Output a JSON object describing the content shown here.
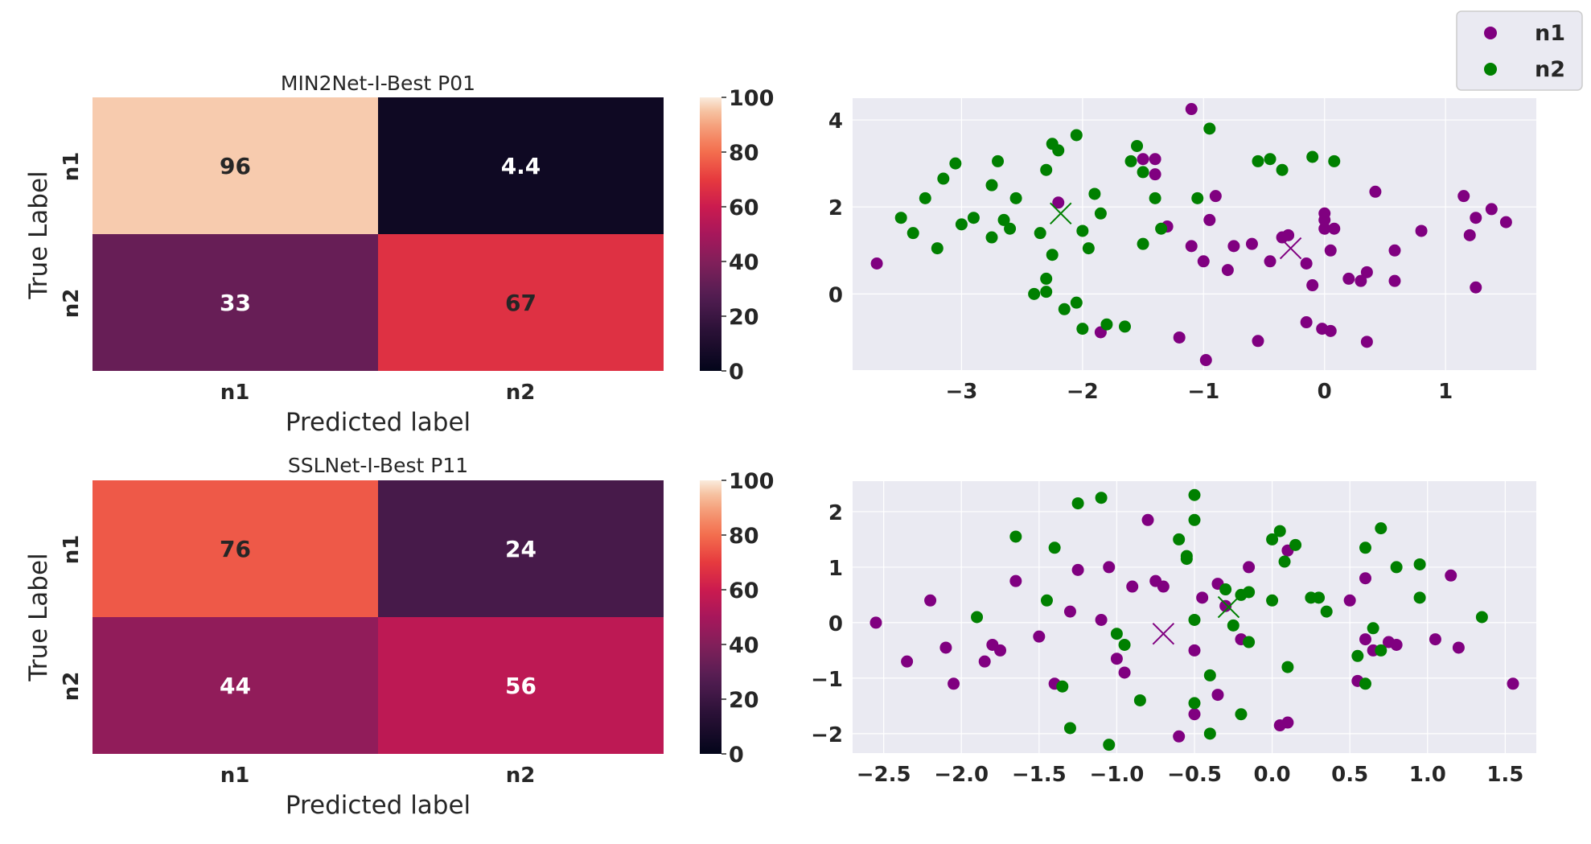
{
  "colors": {
    "n1": "#800080",
    "n2": "#008000",
    "axes_bg": "#eaeaf2",
    "grid": "#ffffff",
    "text": "#262626"
  },
  "legend": {
    "placement": "top-right",
    "entries": [
      {
        "label": "n1",
        "color": "#800080"
      },
      {
        "label": "n2",
        "color": "#008000"
      }
    ]
  },
  "chart_data": [
    {
      "id": "cm1",
      "type": "heatmap",
      "title": "MIN2Net-I-Best P01",
      "xlabel": "Predicted label",
      "ylabel": "True Label",
      "x_categories": [
        "n1",
        "n2"
      ],
      "y_categories": [
        "n1",
        "n2"
      ],
      "values": [
        [
          96,
          4.4
        ],
        [
          33,
          67
        ]
      ],
      "colorbar": {
        "min": 0,
        "max": 100,
        "ticks": [
          0,
          20,
          40,
          60,
          80,
          100
        ],
        "colormap": "rocket"
      }
    },
    {
      "id": "sc1",
      "type": "scatter",
      "xlim": [
        -3.9,
        1.75
      ],
      "ylim": [
        -1.75,
        4.5
      ],
      "xticks": [
        -3,
        -2,
        -1,
        0,
        1
      ],
      "xtick_labels": [
        "−3",
        "−2",
        "−1",
        "0",
        "1"
      ],
      "yticks": [
        0,
        2,
        4
      ],
      "ytick_labels": [
        "0",
        "2",
        "4"
      ],
      "grid": true,
      "series": [
        {
          "name": "n1",
          "color": "#800080",
          "points": [
            [
              -3.7,
              0.7
            ],
            [
              -1.1,
              4.25
            ],
            [
              -1.5,
              3.1
            ],
            [
              -1.4,
              3.1
            ],
            [
              -1.4,
              2.75
            ],
            [
              -0.95,
              1.7
            ],
            [
              -0.9,
              2.25
            ],
            [
              -0.75,
              1.1
            ],
            [
              -0.6,
              1.15
            ],
            [
              -0.35,
              1.3
            ],
            [
              -0.3,
              1.35
            ],
            [
              -0.15,
              0.7
            ],
            [
              -0.1,
              0.2
            ],
            [
              0.0,
              1.7
            ],
            [
              0.0,
              1.85
            ],
            [
              0.0,
              1.5
            ],
            [
              0.05,
              1.0
            ],
            [
              0.08,
              1.5
            ],
            [
              0.2,
              0.35
            ],
            [
              0.3,
              0.3
            ],
            [
              0.35,
              0.5
            ],
            [
              0.42,
              2.35
            ],
            [
              0.58,
              1.0
            ],
            [
              0.58,
              0.3
            ],
            [
              0.8,
              1.45
            ],
            [
              1.15,
              2.25
            ],
            [
              1.2,
              1.35
            ],
            [
              1.25,
              1.75
            ],
            [
              1.38,
              1.95
            ],
            [
              1.5,
              1.65
            ],
            [
              1.25,
              0.15
            ],
            [
              -1.3,
              1.55
            ],
            [
              -1.1,
              1.1
            ],
            [
              -1.0,
              0.75
            ],
            [
              -0.8,
              0.55
            ],
            [
              -0.45,
              0.75
            ],
            [
              -0.15,
              -0.65
            ],
            [
              -0.02,
              -0.8
            ],
            [
              0.05,
              -0.85
            ],
            [
              0.35,
              -1.1
            ],
            [
              -0.55,
              -1.08
            ],
            [
              -0.98,
              -1.52
            ],
            [
              -1.2,
              -1.0
            ],
            [
              -1.85,
              -0.88
            ],
            [
              -2.2,
              2.1
            ]
          ]
        },
        {
          "name": "n2",
          "color": "#008000",
          "points": [
            [
              -3.5,
              1.75
            ],
            [
              -3.4,
              1.4
            ],
            [
              -3.3,
              2.2
            ],
            [
              -3.2,
              1.05
            ],
            [
              -3.15,
              2.65
            ],
            [
              -3.05,
              3.0
            ],
            [
              -3.0,
              1.6
            ],
            [
              -2.9,
              1.75
            ],
            [
              -2.75,
              2.5
            ],
            [
              -2.75,
              1.3
            ],
            [
              -2.7,
              3.05
            ],
            [
              -2.65,
              1.7
            ],
            [
              -2.6,
              1.5
            ],
            [
              -2.55,
              2.2
            ],
            [
              -2.4,
              0.0
            ],
            [
              -2.35,
              1.4
            ],
            [
              -2.3,
              0.35
            ],
            [
              -2.3,
              0.05
            ],
            [
              -2.3,
              2.85
            ],
            [
              -2.25,
              0.9
            ],
            [
              -2.25,
              3.45
            ],
            [
              -2.2,
              3.3
            ],
            [
              -2.15,
              -0.35
            ],
            [
              -2.05,
              3.65
            ],
            [
              -2.05,
              -0.2
            ],
            [
              -2.0,
              1.45
            ],
            [
              -2.0,
              -0.8
            ],
            [
              -1.95,
              1.05
            ],
            [
              -1.9,
              2.3
            ],
            [
              -1.85,
              1.85
            ],
            [
              -1.8,
              -0.7
            ],
            [
              -1.65,
              -0.75
            ],
            [
              -1.6,
              3.05
            ],
            [
              -1.55,
              3.4
            ],
            [
              -1.5,
              2.8
            ],
            [
              -1.5,
              1.15
            ],
            [
              -1.4,
              2.2
            ],
            [
              -1.35,
              1.5
            ],
            [
              -1.05,
              2.2
            ],
            [
              -0.95,
              3.8
            ],
            [
              -0.55,
              3.05
            ],
            [
              -0.45,
              3.1
            ],
            [
              -0.35,
              2.85
            ],
            [
              -0.1,
              3.15
            ],
            [
              0.08,
              3.05
            ]
          ]
        }
      ],
      "centroids": [
        {
          "series": "n1",
          "x": -0.28,
          "y": 1.05,
          "marker": "x"
        },
        {
          "series": "n2",
          "x": -2.18,
          "y": 1.85,
          "marker": "x"
        }
      ]
    },
    {
      "id": "cm2",
      "type": "heatmap",
      "title": "SSLNet-I-Best P11",
      "xlabel": "Predicted label",
      "ylabel": "True Label",
      "x_categories": [
        "n1",
        "n2"
      ],
      "y_categories": [
        "n1",
        "n2"
      ],
      "values": [
        [
          76,
          24
        ],
        [
          44,
          56
        ]
      ],
      "colorbar": {
        "min": 0,
        "max": 100,
        "ticks": [
          0,
          20,
          40,
          60,
          80,
          100
        ],
        "colormap": "rocket"
      }
    },
    {
      "id": "sc2",
      "type": "scatter",
      "xlim": [
        -2.7,
        1.7
      ],
      "ylim": [
        -2.35,
        2.55
      ],
      "xticks": [
        -2.5,
        -2.0,
        -1.5,
        -1.0,
        -0.5,
        0.0,
        0.5,
        1.0,
        1.5
      ],
      "xtick_labels": [
        "−2.5",
        "−2.0",
        "−1.5",
        "−1.0",
        "−0.5",
        "0.0",
        "0.5",
        "1.0",
        "1.5"
      ],
      "yticks": [
        -2,
        -1,
        0,
        1,
        2
      ],
      "ytick_labels": [
        "−2",
        "−1",
        "0",
        "1",
        "2"
      ],
      "grid": true,
      "series": [
        {
          "name": "n1",
          "color": "#800080",
          "points": [
            [
              -2.55,
              0.0
            ],
            [
              -2.35,
              -0.7
            ],
            [
              -2.2,
              0.4
            ],
            [
              -2.1,
              -0.45
            ],
            [
              -2.05,
              -1.1
            ],
            [
              -1.85,
              -0.7
            ],
            [
              -1.8,
              -0.4
            ],
            [
              -1.75,
              -0.5
            ],
            [
              -1.65,
              0.75
            ],
            [
              -1.5,
              -0.25
            ],
            [
              -1.4,
              -1.1
            ],
            [
              -1.3,
              0.2
            ],
            [
              -1.25,
              0.95
            ],
            [
              -1.1,
              0.05
            ],
            [
              -1.05,
              1.0
            ],
            [
              -1.0,
              -0.65
            ],
            [
              -0.95,
              -0.9
            ],
            [
              -0.9,
              0.65
            ],
            [
              -0.8,
              1.85
            ],
            [
              -0.75,
              0.75
            ],
            [
              -0.7,
              0.65
            ],
            [
              -0.6,
              -2.05
            ],
            [
              -0.5,
              -1.65
            ],
            [
              -0.45,
              0.45
            ],
            [
              -0.35,
              -1.3
            ],
            [
              -0.3,
              0.3
            ],
            [
              -0.2,
              -0.3
            ],
            [
              -0.15,
              1.0
            ],
            [
              0.05,
              -1.85
            ],
            [
              0.1,
              -1.8
            ],
            [
              0.1,
              1.3
            ],
            [
              0.5,
              0.4
            ],
            [
              0.55,
              -1.05
            ],
            [
              0.6,
              0.8
            ],
            [
              0.6,
              -0.3
            ],
            [
              0.75,
              -0.35
            ],
            [
              0.8,
              -0.4
            ],
            [
              1.05,
              -0.3
            ],
            [
              1.15,
              0.85
            ],
            [
              1.2,
              -0.45
            ],
            [
              1.55,
              -1.1
            ],
            [
              -0.5,
              -0.5
            ],
            [
              -0.35,
              0.7
            ],
            [
              0.65,
              -0.5
            ]
          ]
        },
        {
          "name": "n2",
          "color": "#008000",
          "points": [
            [
              -1.9,
              0.1
            ],
            [
              -1.65,
              1.55
            ],
            [
              -1.45,
              0.4
            ],
            [
              -1.4,
              1.35
            ],
            [
              -1.35,
              -1.15
            ],
            [
              -1.3,
              -1.9
            ],
            [
              -1.25,
              2.15
            ],
            [
              -1.1,
              2.25
            ],
            [
              -1.05,
              -2.2
            ],
            [
              -1.0,
              -0.2
            ],
            [
              -0.95,
              -0.4
            ],
            [
              -0.85,
              -1.4
            ],
            [
              -0.6,
              1.5
            ],
            [
              -0.55,
              1.2
            ],
            [
              -0.55,
              1.15
            ],
            [
              -0.5,
              2.3
            ],
            [
              -0.5,
              1.85
            ],
            [
              -0.5,
              -1.45
            ],
            [
              -0.5,
              0.05
            ],
            [
              -0.4,
              -0.95
            ],
            [
              -0.4,
              -2.0
            ],
            [
              -0.3,
              0.6
            ],
            [
              -0.25,
              -0.05
            ],
            [
              -0.2,
              0.5
            ],
            [
              -0.2,
              -1.65
            ],
            [
              -0.15,
              0.55
            ],
            [
              -0.15,
              -0.35
            ],
            [
              0.0,
              1.5
            ],
            [
              0.0,
              0.4
            ],
            [
              0.05,
              1.65
            ],
            [
              0.08,
              1.1
            ],
            [
              0.1,
              -0.8
            ],
            [
              0.15,
              1.4
            ],
            [
              0.25,
              0.45
            ],
            [
              0.3,
              0.45
            ],
            [
              0.35,
              0.2
            ],
            [
              0.55,
              -0.6
            ],
            [
              0.6,
              1.35
            ],
            [
              0.6,
              -1.1
            ],
            [
              0.65,
              -0.1
            ],
            [
              0.7,
              1.7
            ],
            [
              0.7,
              -0.5
            ],
            [
              0.8,
              1.0
            ],
            [
              0.95,
              1.05
            ],
            [
              0.95,
              0.45
            ],
            [
              1.35,
              0.1
            ]
          ]
        }
      ],
      "centroids": [
        {
          "series": "n1",
          "x": -0.7,
          "y": -0.2,
          "marker": "x"
        },
        {
          "series": "n2",
          "x": -0.28,
          "y": 0.28,
          "marker": "x"
        }
      ]
    }
  ]
}
